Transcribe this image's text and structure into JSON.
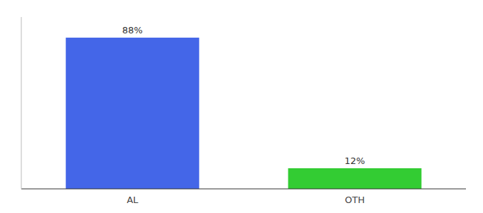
{
  "chart_data": {
    "type": "bar",
    "categories": [
      "AL",
      "OTH"
    ],
    "values": [
      88,
      12
    ],
    "value_labels": [
      "88%",
      "12%"
    ],
    "data_labels": true,
    "colors": [
      "#4466e8",
      "#33cc33"
    ],
    "ylim": [
      0,
      100
    ],
    "tick_labels": "x",
    "grid": false
  }
}
